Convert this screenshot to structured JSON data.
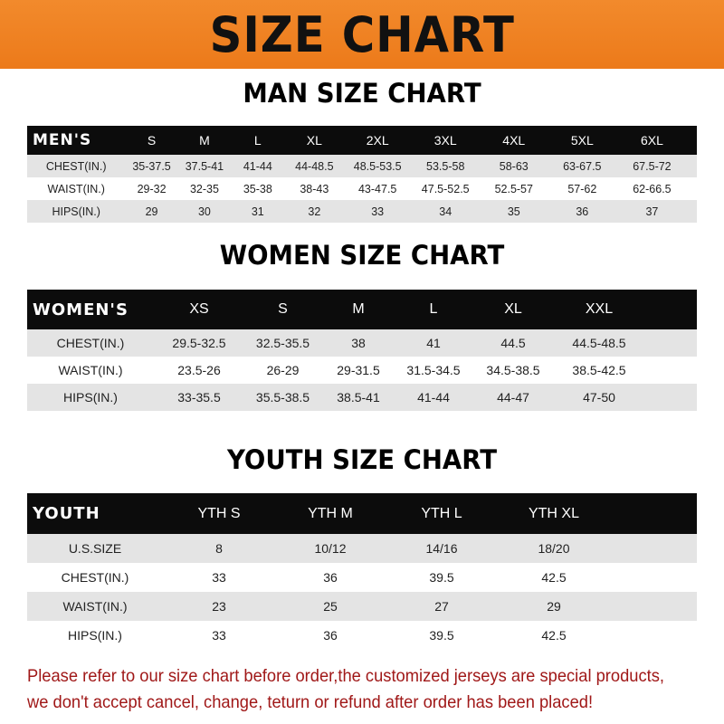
{
  "banner": {
    "title": "SIZE CHART",
    "color": "#ef821f"
  },
  "men": {
    "title": "MAN SIZE CHART",
    "header": [
      "MEN'S",
      "S",
      "M",
      "L",
      "XL",
      "2XL",
      "3XL",
      "4XL",
      "5XL",
      "6XL"
    ],
    "rows": [
      [
        "CHEST(IN.)",
        "35-37.5",
        "37.5-41",
        "41-44",
        "44-48.5",
        "48.5-53.5",
        "53.5-58",
        "58-63",
        "63-67.5",
        "67.5-72"
      ],
      [
        "WAIST(IN.)",
        "29-32",
        "32-35",
        "35-38",
        "38-43",
        "43-47.5",
        "47.5-52.5",
        "52.5-57",
        "57-62",
        "62-66.5"
      ],
      [
        "HIPS(IN.)",
        "29",
        "30",
        "31",
        "32",
        "33",
        "34",
        "35",
        "36",
        "37"
      ]
    ]
  },
  "women": {
    "title": "WOMEN SIZE CHART",
    "header": [
      "WOMEN'S",
      "XS",
      "S",
      "M",
      "L",
      "XL",
      "XXL"
    ],
    "rows": [
      [
        "CHEST(IN.)",
        "29.5-32.5",
        "32.5-35.5",
        "38",
        "41",
        "44.5",
        "44.5-48.5"
      ],
      [
        "WAIST(IN.)",
        "23.5-26",
        "26-29",
        "29-31.5",
        "31.5-34.5",
        "34.5-38.5",
        "38.5-42.5"
      ],
      [
        "HIPS(IN.)",
        "33-35.5",
        "35.5-38.5",
        "38.5-41",
        "41-44",
        "44-47",
        "47-50"
      ]
    ]
  },
  "youth": {
    "title": "YOUTH SIZE CHART",
    "header": [
      "YOUTH",
      "YTH S",
      "YTH M",
      "YTH L",
      "YTH XL"
    ],
    "rows": [
      [
        "U.S.SIZE",
        "8",
        "10/12",
        "14/16",
        "18/20"
      ],
      [
        "CHEST(IN.)",
        "33",
        "36",
        "39.5",
        "42.5"
      ],
      [
        "WAIST(IN.)",
        "23",
        "25",
        "27",
        "29"
      ],
      [
        "HIPS(IN.)",
        "33",
        "36",
        "39.5",
        "42.5"
      ]
    ]
  },
  "note": {
    "line1": "Please refer to our size chart before order,the customized jerseys are special products,",
    "line2": "we don't accept cancel, change, teturn or refund after order has been placed!",
    "color": "#a01818"
  }
}
